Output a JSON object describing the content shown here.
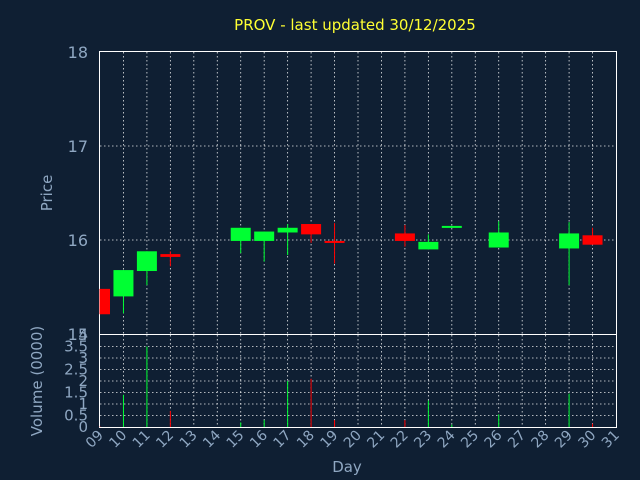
{
  "chart_data": [
    {
      "type": "candlestick",
      "title": "PROV - last updated 30/12/2025",
      "ylabel": "Price",
      "ylim": [
        15,
        18
      ],
      "yticks": [
        "15",
        "16",
        "17",
        "18"
      ],
      "grid": true,
      "up_color": "#00ff33",
      "down_color": "#ff0000",
      "candles": [
        {
          "day": 9,
          "open": 15.48,
          "close": 15.21,
          "high": 15.48,
          "low": 15.21
        },
        {
          "day": 10,
          "open": 15.4,
          "close": 15.68,
          "high": 15.68,
          "low": 15.22
        },
        {
          "day": 11,
          "open": 15.67,
          "close": 15.88,
          "high": 15.88,
          "low": 15.52
        },
        {
          "day": 12,
          "open": 15.85,
          "close": 15.82,
          "high": 15.88,
          "low": 15.72
        },
        {
          "day": 15,
          "open": 15.99,
          "close": 16.13,
          "high": 16.13,
          "low": 15.86
        },
        {
          "day": 16,
          "open": 15.99,
          "close": 16.09,
          "high": 16.09,
          "low": 15.77
        },
        {
          "day": 17,
          "open": 16.08,
          "close": 16.13,
          "high": 16.17,
          "low": 15.84
        },
        {
          "day": 18,
          "open": 16.17,
          "close": 16.06,
          "high": 16.17,
          "low": 15.97
        },
        {
          "day": 19,
          "open": 15.99,
          "close": 15.98,
          "high": 16.18,
          "low": 15.75
        },
        {
          "day": 22,
          "open": 16.07,
          "close": 15.99,
          "high": 16.16,
          "low": 15.93
        },
        {
          "day": 23,
          "open": 15.9,
          "close": 15.98,
          "high": 16.06,
          "low": 15.9
        },
        {
          "day": 24,
          "open": 16.13,
          "close": 16.15,
          "high": 16.15,
          "low": 16.13
        },
        {
          "day": 26,
          "open": 15.92,
          "close": 16.08,
          "high": 16.2,
          "low": 15.92
        },
        {
          "day": 29,
          "open": 15.91,
          "close": 16.07,
          "high": 16.19,
          "low": 15.52
        },
        {
          "day": 30,
          "open": 16.05,
          "close": 15.95,
          "high": 16.13,
          "low": 15.95
        }
      ]
    },
    {
      "type": "bar",
      "xlabel": "Day",
      "ylabel": "Volume (0000)",
      "ylim": [
        0,
        4
      ],
      "yticks": [
        "0",
        "0.5",
        "1",
        "1.5",
        "2",
        "2.5",
        "3",
        "3.5",
        "4"
      ],
      "categories": [
        "09",
        "10",
        "11",
        "12",
        "13",
        "14",
        "15",
        "16",
        "17",
        "18",
        "19",
        "20",
        "21",
        "22",
        "23",
        "24",
        "25",
        "26",
        "27",
        "28",
        "29",
        "30",
        "31"
      ],
      "grid": true,
      "bars": [
        {
          "day": 9,
          "value": 0.02,
          "direction": "down"
        },
        {
          "day": 10,
          "value": 1.4,
          "direction": "up"
        },
        {
          "day": 11,
          "value": 3.5,
          "direction": "up"
        },
        {
          "day": 12,
          "value": 0.7,
          "direction": "down"
        },
        {
          "day": 15,
          "value": 0.2,
          "direction": "up"
        },
        {
          "day": 16,
          "value": 0.3,
          "direction": "up"
        },
        {
          "day": 17,
          "value": 2.0,
          "direction": "up"
        },
        {
          "day": 18,
          "value": 2.1,
          "direction": "down"
        },
        {
          "day": 19,
          "value": 0.3,
          "direction": "down"
        },
        {
          "day": 22,
          "value": 0.3,
          "direction": "down"
        },
        {
          "day": 23,
          "value": 1.15,
          "direction": "up"
        },
        {
          "day": 24,
          "value": 0.1,
          "direction": "up"
        },
        {
          "day": 26,
          "value": 0.55,
          "direction": "up"
        },
        {
          "day": 29,
          "value": 1.45,
          "direction": "up"
        },
        {
          "day": 30,
          "value": 0.15,
          "direction": "down"
        }
      ]
    }
  ]
}
